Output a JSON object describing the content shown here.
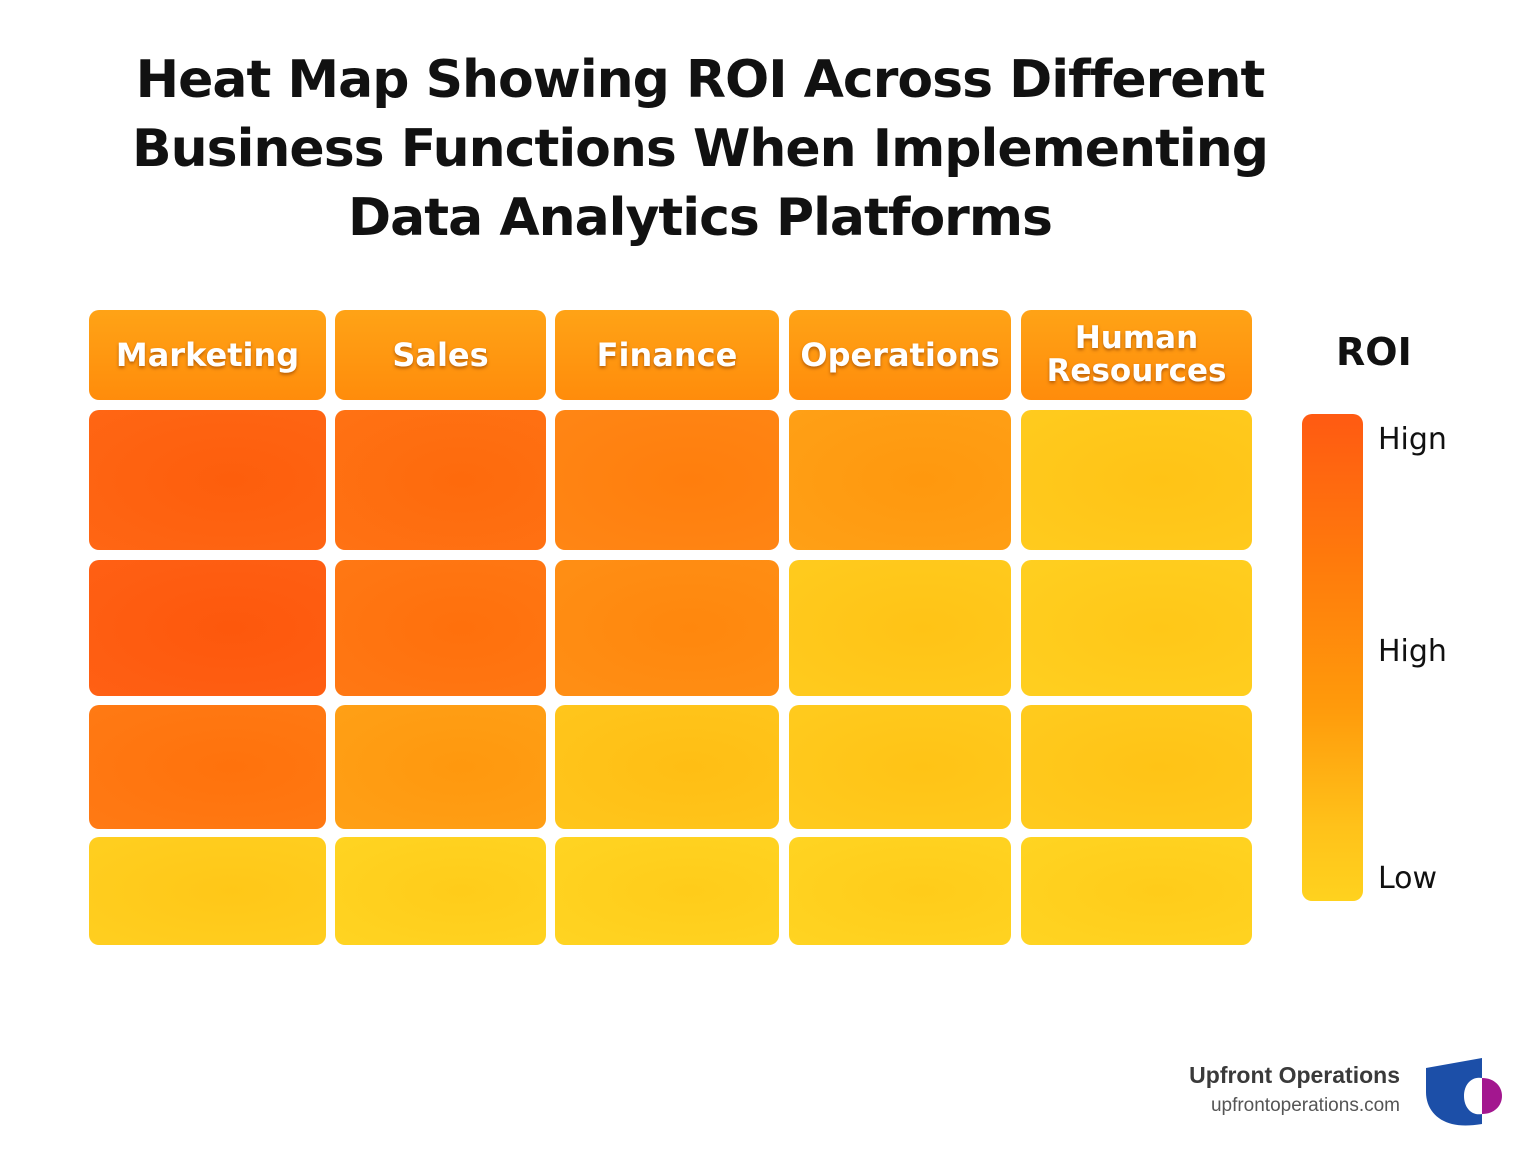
{
  "title_lines": [
    "Heat Map Showing ROI Across Different",
    "Business Functions When Implementing",
    "Data Analytics Platforms"
  ],
  "chart_data": {
    "type": "heatmap",
    "title": "Heat Map Showing ROI Across Different Business Functions When Implementing Data Analytics Platforms",
    "columns": [
      "Marketing",
      "Sales",
      "Finance",
      "Operations",
      "Human\nResources"
    ],
    "rows": [
      "",
      "",
      "",
      ""
    ],
    "values": [
      [
        0.95,
        0.85,
        0.7,
        0.55,
        0.2
      ],
      [
        1.0,
        0.8,
        0.65,
        0.2,
        0.15
      ],
      [
        0.78,
        0.55,
        0.25,
        0.2,
        0.2
      ],
      [
        0.15,
        0.1,
        0.1,
        0.1,
        0.1
      ]
    ],
    "legend": {
      "title": "ROI",
      "labels": [
        "Hign",
        "High",
        "Low"
      ],
      "colors": [
        "#ff5a12",
        "#ff9a0b",
        "#ffd21e"
      ]
    }
  },
  "brand": {
    "name": "Upfront Operations",
    "url": "upfrontoperations.com",
    "colors": [
      "#1c4fa8",
      "#a3178f"
    ]
  }
}
